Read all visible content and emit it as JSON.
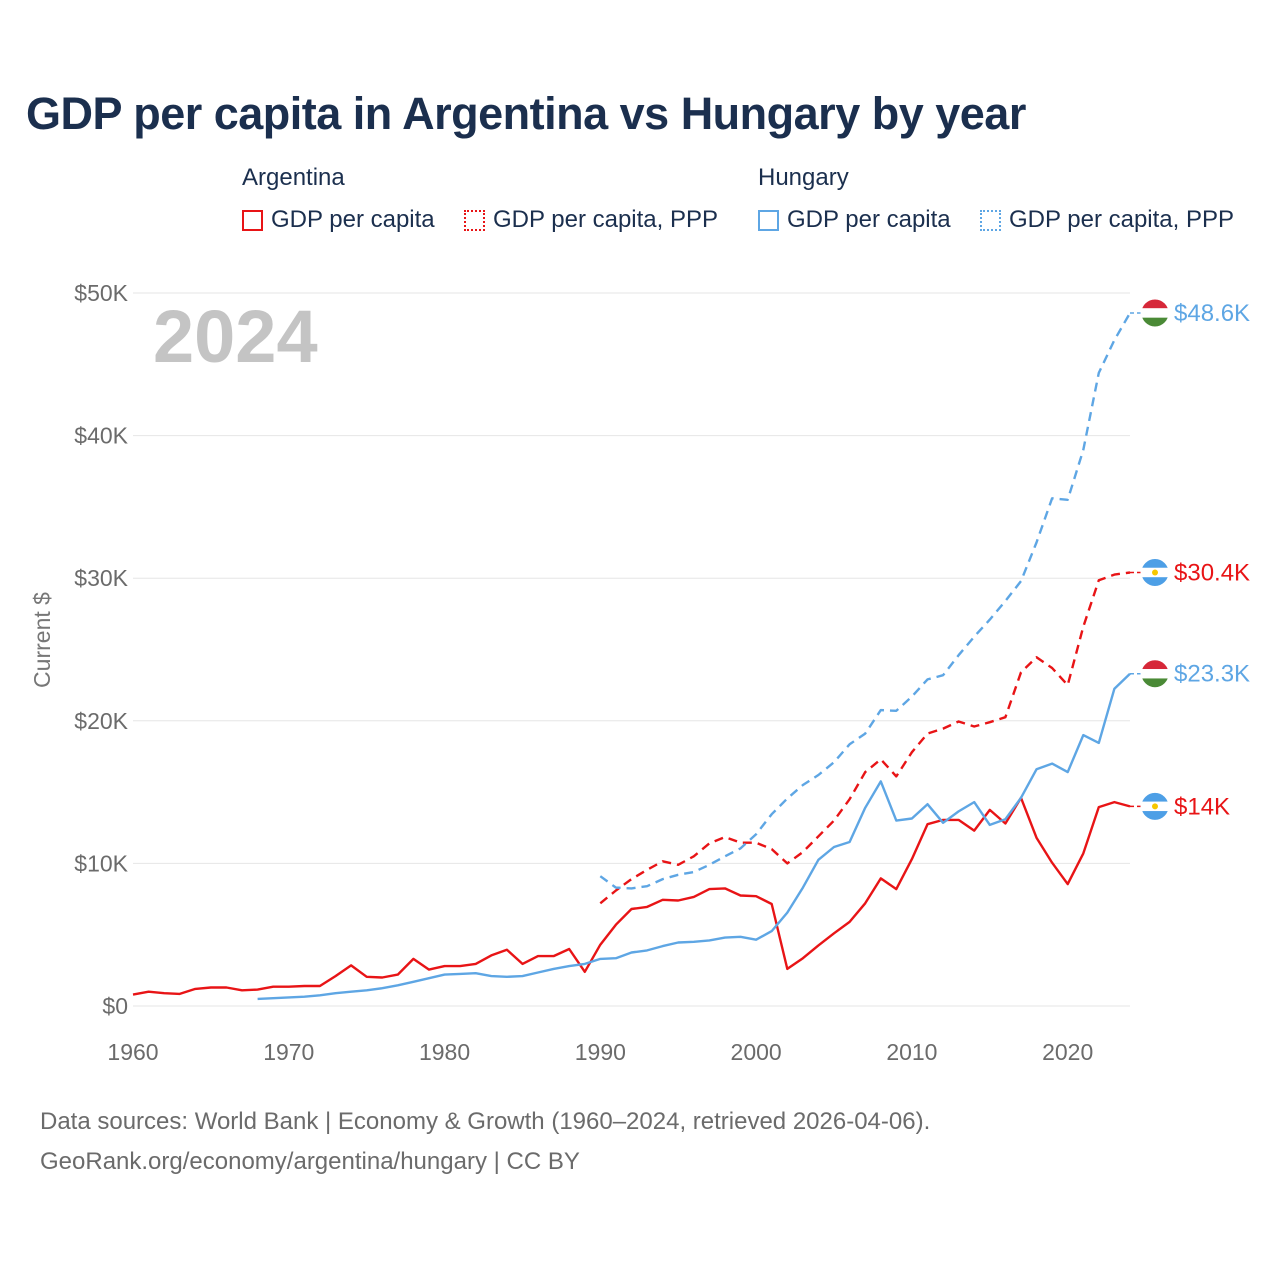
{
  "title": "GDP per capita in Argentina vs Hungary by year",
  "legend": {
    "groups": [
      {
        "name": "Argentina",
        "color": "#e81416",
        "items": [
          {
            "label": "GDP per capita",
            "style": "solid"
          },
          {
            "label": "GDP per capita, PPP",
            "style": "dotted"
          }
        ]
      },
      {
        "name": "Hungary",
        "color": "#5ea6e4",
        "items": [
          {
            "label": "GDP per capita",
            "style": "solid"
          },
          {
            "label": "GDP per capita, PPP",
            "style": "dotted"
          }
        ]
      }
    ]
  },
  "year_watermark": "2024",
  "source_line1": "Data sources: World Bank | Economy & Growth (1960–2024, retrieved 2026-04-06).",
  "source_line2": "GeoRank.org/economy/argentina/hungary | CC BY",
  "chart_data": {
    "type": "line",
    "title": "GDP per capita in Argentina vs Hungary by year",
    "xlabel": "",
    "ylabel": "Current $",
    "xlim": [
      1960,
      2024
    ],
    "ylim": [
      0,
      50000
    ],
    "x_ticks": [
      1960,
      1970,
      1980,
      1990,
      2000,
      2010,
      2020
    ],
    "x_tick_labels": [
      "1960",
      "1970",
      "1980",
      "1990",
      "2000",
      "2010",
      "2020"
    ],
    "y_ticks": [
      0,
      10000,
      20000,
      30000,
      40000,
      50000
    ],
    "y_tick_labels": [
      "$0",
      "$10K",
      "$20K",
      "$30K",
      "$40K",
      "$50K"
    ],
    "grid": true,
    "series": [
      {
        "name": "Argentina GDP per capita",
        "country": "Argentina",
        "color": "#e81416",
        "dash": "solid",
        "end_label": "$14K",
        "x": [
          1960,
          1961,
          1962,
          1963,
          1964,
          1965,
          1966,
          1967,
          1968,
          1969,
          1970,
          1971,
          1972,
          1973,
          1974,
          1975,
          1976,
          1977,
          1978,
          1979,
          1980,
          1981,
          1982,
          1983,
          1984,
          1985,
          1986,
          1987,
          1988,
          1989,
          1990,
          1991,
          1992,
          1993,
          1994,
          1995,
          1996,
          1997,
          1998,
          1999,
          2000,
          2001,
          2002,
          2003,
          2004,
          2005,
          2006,
          2007,
          2008,
          2009,
          2010,
          2011,
          2012,
          2013,
          2014,
          2015,
          2016,
          2017,
          2018,
          2019,
          2020,
          2021,
          2022,
          2023,
          2024
        ],
        "values": [
          800,
          1000,
          900,
          850,
          1200,
          1300,
          1300,
          1100,
          1150,
          1350,
          1350,
          1400,
          1400,
          2100,
          2850,
          2050,
          2000,
          2200,
          3300,
          2550,
          2800,
          2800,
          2950,
          3550,
          3950,
          2950,
          3500,
          3500,
          4000,
          2400,
          4300,
          5700,
          6800,
          6950,
          7450,
          7400,
          7650,
          8200,
          8250,
          7750,
          7700,
          7150,
          2600,
          3350,
          4250,
          5100,
          5900,
          7200,
          8950,
          8200,
          10300,
          12750,
          13050,
          13050,
          12300,
          13750,
          12800,
          14600,
          11800,
          10050,
          8550,
          10700,
          13950,
          14300,
          14000
        ]
      },
      {
        "name": "Argentina GDP per capita, PPP",
        "country": "Argentina",
        "color": "#e81416",
        "dash": "dashed",
        "end_label": "$30.4K",
        "x": [
          1990,
          1991,
          1992,
          1993,
          1994,
          1995,
          1996,
          1997,
          1998,
          1999,
          2000,
          2001,
          2002,
          2003,
          2004,
          2005,
          2006,
          2007,
          2008,
          2009,
          2010,
          2011,
          2012,
          2013,
          2014,
          2015,
          2016,
          2017,
          2018,
          2019,
          2020,
          2021,
          2022,
          2023,
          2024
        ],
        "values": [
          7200,
          8100,
          8900,
          9550,
          10150,
          9900,
          10500,
          11400,
          11850,
          11450,
          11450,
          11000,
          10000,
          10800,
          11900,
          13000,
          14500,
          16400,
          17300,
          16100,
          17800,
          19100,
          19450,
          19950,
          19600,
          19900,
          20250,
          23400,
          24450,
          23700,
          22500,
          26600,
          29850,
          30250,
          30400
        ]
      },
      {
        "name": "Hungary GDP per capita",
        "country": "Hungary",
        "color": "#5ea6e4",
        "dash": "solid",
        "end_label": "$23.3K",
        "x": [
          1968,
          1969,
          1970,
          1971,
          1972,
          1973,
          1974,
          1975,
          1976,
          1977,
          1978,
          1979,
          1980,
          1981,
          1982,
          1983,
          1984,
          1985,
          1986,
          1987,
          1988,
          1989,
          1990,
          1991,
          1992,
          1993,
          1994,
          1995,
          1996,
          1997,
          1998,
          1999,
          2000,
          2001,
          2002,
          2003,
          2004,
          2005,
          2006,
          2007,
          2008,
          2009,
          2010,
          2011,
          2012,
          2013,
          2014,
          2015,
          2016,
          2017,
          2018,
          2019,
          2020,
          2021,
          2022,
          2023,
          2024
        ],
        "values": [
          500,
          550,
          600,
          650,
          750,
          900,
          1000,
          1100,
          1250,
          1450,
          1700,
          1950,
          2200,
          2250,
          2300,
          2100,
          2050,
          2100,
          2350,
          2600,
          2800,
          2950,
          3300,
          3350,
          3750,
          3900,
          4200,
          4450,
          4500,
          4600,
          4800,
          4850,
          4650,
          5250,
          6550,
          8300,
          10250,
          11150,
          11500,
          13900,
          15750,
          13000,
          13150,
          14150,
          12850,
          13650,
          14300,
          12700,
          13100,
          14600,
          16600,
          17000,
          16400,
          19000,
          18450,
          22250,
          23300
        ]
      },
      {
        "name": "Hungary GDP per capita, PPP",
        "country": "Hungary",
        "color": "#5ea6e4",
        "dash": "dashed",
        "end_label": "$48.6K",
        "x": [
          1990,
          1991,
          1992,
          1993,
          1994,
          1995,
          1996,
          1997,
          1998,
          1999,
          2000,
          2001,
          2002,
          2003,
          2004,
          2005,
          2006,
          2007,
          2008,
          2009,
          2010,
          2011,
          2012,
          2013,
          2014,
          2015,
          2016,
          2017,
          2018,
          2019,
          2020,
          2021,
          2022,
          2023,
          2024
        ],
        "values": [
          9100,
          8300,
          8250,
          8400,
          8900,
          9200,
          9400,
          9900,
          10500,
          11050,
          12050,
          13450,
          14550,
          15500,
          16200,
          17100,
          18350,
          19100,
          20750,
          20700,
          21700,
          22900,
          23200,
          24600,
          25900,
          27100,
          28400,
          29800,
          32500,
          35600,
          35500,
          39000,
          44400,
          46700,
          48600
        ]
      }
    ]
  }
}
